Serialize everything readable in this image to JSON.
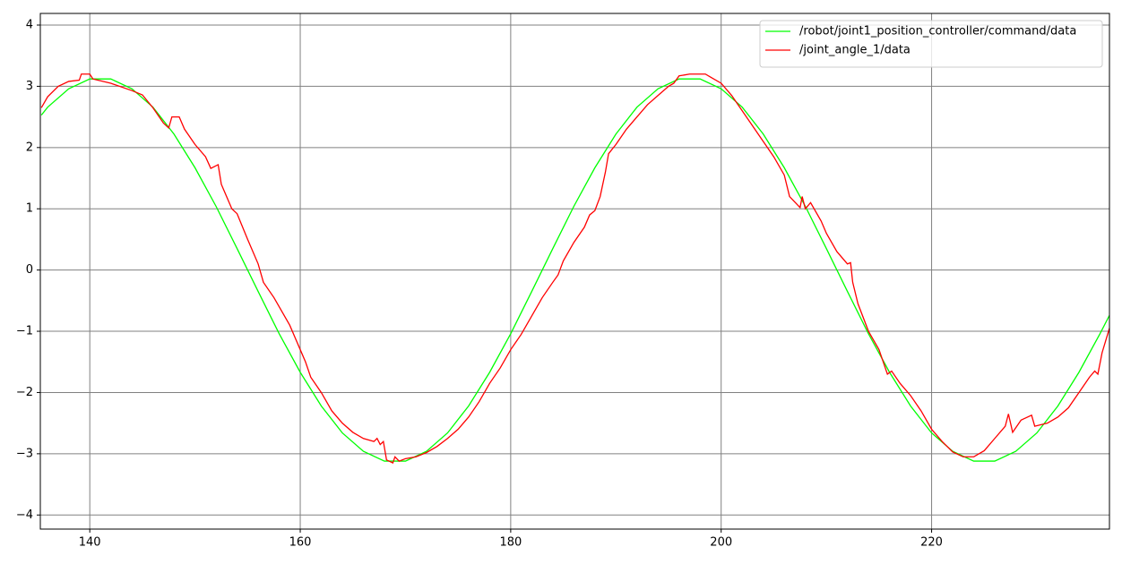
{
  "chart_data": {
    "type": "line",
    "xlim": [
      135.3,
      236.9
    ],
    "ylim": [
      -4.23,
      4.19
    ],
    "xticks": [
      140,
      160,
      180,
      200,
      220
    ],
    "yticks": [
      {
        "value": -4,
        "label": "−4"
      },
      {
        "value": -3,
        "label": "−3"
      },
      {
        "value": -2,
        "label": "−2"
      },
      {
        "value": -1,
        "label": "−1"
      },
      0,
      1,
      2,
      3,
      4
    ],
    "grid": true,
    "legend": "upper right",
    "series": [
      {
        "name": "/robot/joint1_position_controller/command/data",
        "color": "#00ff00",
        "x": [
          135.4,
          136,
          138,
          140,
          142,
          144,
          146,
          148,
          150,
          152,
          154,
          156,
          158,
          160,
          162,
          164,
          166,
          168,
          170,
          172,
          174,
          176,
          178,
          180,
          182,
          184,
          186,
          188,
          190,
          192,
          194,
          196,
          198,
          200,
          202,
          204,
          206,
          208,
          210,
          212,
          214,
          216,
          218,
          220,
          222,
          224,
          226,
          228,
          230,
          232,
          234,
          236,
          236.9
        ],
        "values": [
          2.53,
          2.66,
          2.96,
          3.12,
          3.12,
          2.96,
          2.66,
          2.22,
          1.67,
          1.04,
          0.35,
          -0.35,
          -1.04,
          -1.67,
          -2.22,
          -2.66,
          -2.96,
          -3.12,
          -3.12,
          -2.96,
          -2.66,
          -2.22,
          -1.67,
          -1.04,
          -0.35,
          0.35,
          1.04,
          1.67,
          2.22,
          2.66,
          2.96,
          3.12,
          3.12,
          2.96,
          2.66,
          2.22,
          1.67,
          1.04,
          0.35,
          -0.35,
          -1.04,
          -1.67,
          -2.22,
          -2.66,
          -2.96,
          -3.12,
          -3.12,
          -2.96,
          -2.66,
          -2.22,
          -1.67,
          -1.04,
          -0.74
        ]
      },
      {
        "name": "/joint_angle_1/data",
        "color": "#ff0000",
        "x": [
          135.4,
          136,
          137,
          138,
          139,
          139.2,
          140,
          140.3,
          142,
          144,
          145,
          146,
          147,
          147.5,
          147.8,
          148.5,
          149,
          150,
          151,
          151.5,
          152.2,
          152.5,
          153.5,
          154,
          155,
          156,
          156.5,
          157.5,
          158,
          159,
          160,
          160.5,
          161,
          162,
          163,
          164,
          165,
          166,
          167,
          167.3,
          167.6,
          167.9,
          168.2,
          168.8,
          169,
          169.4,
          170,
          171,
          172,
          173,
          174,
          175,
          176,
          177,
          178,
          179,
          180,
          181,
          182,
          183,
          184,
          184.5,
          185,
          186,
          187,
          187.5,
          188,
          188.5,
          189,
          189.3,
          190,
          191,
          192,
          193,
          194,
          195,
          195.5,
          196,
          197,
          198.5,
          199,
          200,
          201,
          202,
          203,
          204,
          205,
          206,
          206.5,
          207.5,
          207.7,
          208,
          208.5,
          209.5,
          210,
          211,
          212,
          212.3,
          212.5,
          213,
          214,
          215,
          215.5,
          215.8,
          216.2,
          217,
          218,
          219,
          220,
          221,
          222,
          223,
          224,
          225,
          226,
          227,
          227.3,
          227.7,
          228.5,
          229.5,
          229.8,
          231,
          232,
          233,
          234,
          235,
          235.5,
          235.8,
          236.2,
          236.9
        ],
        "values": [
          2.65,
          2.83,
          3.0,
          3.08,
          3.1,
          3.2,
          3.2,
          3.12,
          3.05,
          2.93,
          2.86,
          2.65,
          2.4,
          2.32,
          2.5,
          2.5,
          2.3,
          2.05,
          1.85,
          1.66,
          1.72,
          1.4,
          1.0,
          0.92,
          0.5,
          0.1,
          -0.2,
          -0.45,
          -0.6,
          -0.9,
          -1.3,
          -1.5,
          -1.75,
          -2.0,
          -2.3,
          -2.5,
          -2.65,
          -2.75,
          -2.8,
          -2.75,
          -2.85,
          -2.8,
          -3.1,
          -3.15,
          -3.05,
          -3.12,
          -3.08,
          -3.05,
          -2.98,
          -2.88,
          -2.75,
          -2.6,
          -2.4,
          -2.15,
          -1.85,
          -1.6,
          -1.3,
          -1.05,
          -0.75,
          -0.45,
          -0.2,
          -0.08,
          0.15,
          0.45,
          0.7,
          0.9,
          0.97,
          1.2,
          1.6,
          1.9,
          2.05,
          2.3,
          2.5,
          2.7,
          2.85,
          3.0,
          3.05,
          3.17,
          3.2,
          3.2,
          3.15,
          3.05,
          2.85,
          2.6,
          2.35,
          2.1,
          1.85,
          1.55,
          1.2,
          1.02,
          1.2,
          1.0,
          1.1,
          0.8,
          0.6,
          0.3,
          0.1,
          0.12,
          -0.2,
          -0.55,
          -1.0,
          -1.3,
          -1.55,
          -1.7,
          -1.65,
          -1.85,
          -2.05,
          -2.3,
          -2.6,
          -2.8,
          -2.97,
          -3.05,
          -3.05,
          -2.95,
          -2.75,
          -2.55,
          -2.35,
          -2.65,
          -2.45,
          -2.37,
          -2.55,
          -2.5,
          -2.4,
          -2.25,
          -2.0,
          -1.75,
          -1.65,
          -1.7,
          -1.35,
          -0.95
        ]
      }
    ]
  }
}
